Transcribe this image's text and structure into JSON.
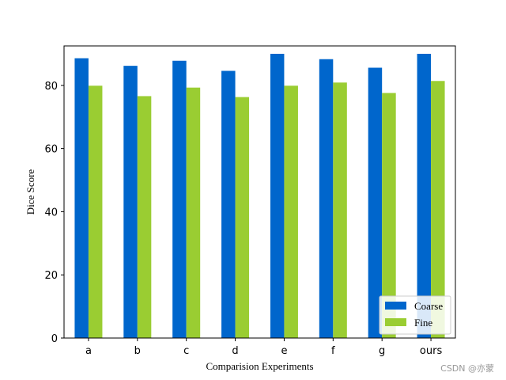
{
  "chart_data": {
    "type": "bar",
    "title": "",
    "xlabel": "Comparision   Experiments",
    "ylabel": "Dice  Score",
    "categories": [
      "a",
      "b",
      "c",
      "d",
      "e",
      "f",
      "g",
      "ours"
    ],
    "series": [
      {
        "name": "Coarse",
        "color": "#0066cc",
        "values": [
          88.6,
          86.2,
          87.8,
          84.6,
          90.0,
          88.3,
          85.6,
          90.0
        ]
      },
      {
        "name": "Fine",
        "color": "#9acd32",
        "values": [
          79.9,
          76.6,
          79.3,
          76.3,
          79.9,
          80.9,
          77.6,
          81.4
        ]
      }
    ],
    "ylim": [
      0,
      92.5
    ],
    "yticks": [
      0,
      20,
      40,
      60,
      80
    ],
    "grid": false,
    "legend_position": "lower-right"
  },
  "watermark": "CSDN @亦蒙"
}
